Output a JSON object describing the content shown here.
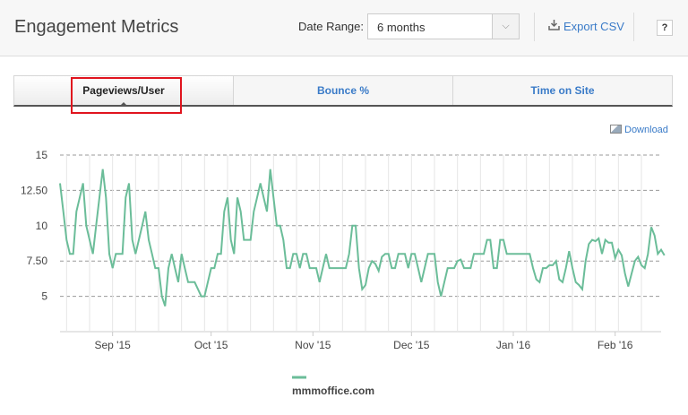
{
  "header": {
    "title": "Engagement Metrics",
    "date_range_label": "Date Range:",
    "date_range_value": "6 months",
    "export_label": "Export CSV",
    "help_label": "?"
  },
  "tabs": [
    {
      "label": "Pageviews/User",
      "active": true
    },
    {
      "label": "Bounce %",
      "active": false
    },
    {
      "label": "Time on Site",
      "active": false
    }
  ],
  "download_label": "Download",
  "colors": {
    "series": "#6bbd99",
    "link": "#3a7bc8",
    "highlight": "#e0141e"
  },
  "chart_data": {
    "type": "line",
    "title": "",
    "xlabel": "",
    "ylabel": "",
    "ylim": [
      2.5,
      15
    ],
    "yticks": [
      "15",
      "12.50",
      "10",
      "7.50",
      "5"
    ],
    "ytick_values": [
      15,
      12.5,
      10,
      7.5,
      5
    ],
    "xticks": [
      "Sep '15",
      "Oct '15",
      "Nov '15",
      "Dec '15",
      "Jan '16",
      "Feb '16"
    ],
    "xtick_dates": [
      "2015-09-01",
      "2015-10-01",
      "2015-11-01",
      "2015-12-01",
      "2016-01-01",
      "2016-02-01"
    ],
    "x_range": [
      "2015-08-16",
      "2016-02-15"
    ],
    "grid": true,
    "legend_position": "bottom",
    "series": [
      {
        "name": "mmmoffice.com",
        "color": "#6bbd99",
        "x_start": "2015-08-16",
        "x_step_days": 1,
        "values": [
          13,
          11,
          9,
          8,
          8,
          11,
          12,
          13,
          10,
          9,
          8,
          10,
          12,
          14,
          12,
          8,
          7,
          8,
          8,
          8,
          12,
          13,
          9,
          8,
          9,
          10,
          11,
          9,
          8,
          7,
          7,
          5,
          4.3,
          7,
          8,
          7,
          6,
          8,
          7,
          6,
          6,
          6,
          5.5,
          5,
          5,
          6,
          7,
          7,
          8,
          8,
          11,
          12,
          9,
          8,
          12,
          11,
          9,
          9,
          9,
          11,
          12,
          13,
          12,
          11,
          14,
          12,
          10,
          10,
          9,
          7,
          7,
          8,
          8,
          7,
          8,
          8,
          7,
          7,
          7,
          6,
          7,
          8,
          7,
          7,
          7,
          7,
          7,
          7,
          8,
          10,
          10,
          7,
          5.5,
          5.8,
          7,
          7.5,
          7.3,
          6.8,
          7.8,
          8,
          8,
          7,
          7,
          8,
          8,
          8,
          7,
          8,
          8,
          7,
          6,
          7,
          8,
          8,
          8,
          6,
          5,
          6,
          7,
          7,
          7,
          7.5,
          7.6,
          7,
          7,
          7,
          8,
          8,
          8,
          8,
          9,
          9,
          7,
          7,
          9,
          9,
          8,
          8,
          8,
          8,
          8,
          8,
          8,
          8,
          7,
          6.2,
          6,
          7,
          7,
          7.2,
          7.2,
          7.5,
          6.2,
          6,
          7,
          8.2,
          7,
          6,
          5.8,
          5.5,
          7.5,
          8.7,
          9,
          8.9,
          9.1,
          8,
          9,
          8.8,
          8.8,
          7.7,
          8.3,
          7.9,
          6.6,
          5.7,
          6.6,
          7.5,
          7.8,
          7.2,
          7,
          8,
          9.9,
          9.3,
          8,
          8.3,
          7.9
        ]
      }
    ]
  }
}
